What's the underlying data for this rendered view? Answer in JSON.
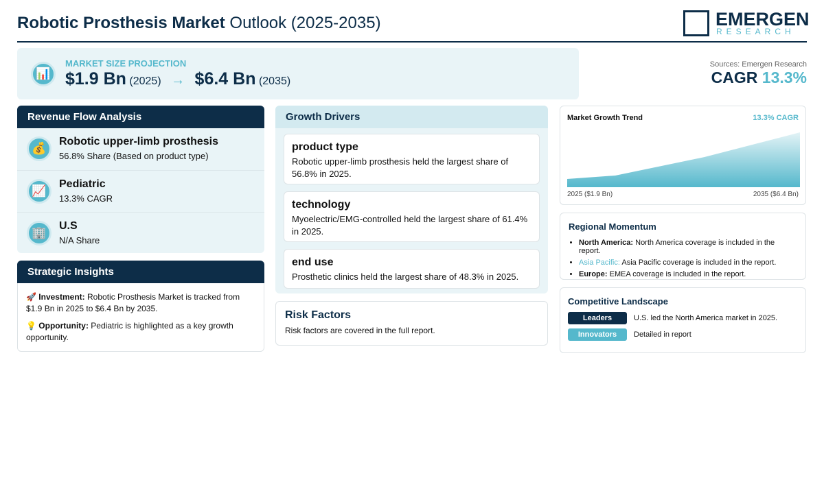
{
  "header": {
    "title_bold": "Robotic Prosthesis Market",
    "title_rest": "Outlook (2025-2035)",
    "logo_main": "EMERGEN",
    "logo_sub": "RESEARCH"
  },
  "projection": {
    "icon": "📊",
    "label": "MARKET SIZE PROJECTION",
    "start_value": "$1.9 Bn",
    "start_year": "(2025)",
    "arrow": "→",
    "end_value": "$6.4 Bn",
    "end_year": "(2035)"
  },
  "sources": "Sources: Emergen Research",
  "cagr": {
    "label": "CAGR",
    "value": "13.3%"
  },
  "revenue_flow": {
    "title": "Revenue Flow Analysis",
    "items": [
      {
        "icon": "💰",
        "name": "Robotic upper-limb prosthesis",
        "detail": "56.8% Share (Based on product type)"
      },
      {
        "icon": "📈",
        "name": "Pediatric",
        "detail": "13.3% CAGR"
      },
      {
        "icon": "🏢",
        "name": "U.S",
        "detail": "N/A Share"
      }
    ]
  },
  "strategic_insights": {
    "title": "Strategic Insights",
    "items": [
      {
        "icon": "🚀",
        "label": "Investment:",
        "text": "Robotic Prosthesis Market is tracked from $1.9 Bn in 2025 to $6.4 Bn by 2035."
      },
      {
        "icon": "💡",
        "label": "Opportunity:",
        "text": "Pediatric is highlighted as a key growth opportunity."
      }
    ]
  },
  "growth_drivers": {
    "title": "Growth Drivers",
    "cards": [
      {
        "title": "product type",
        "text": "Robotic upper-limb prosthesis held the largest share of 56.8% in 2025."
      },
      {
        "title": "technology",
        "text": "Myoelectric/EMG-controlled held the largest share of 61.4% in 2025."
      },
      {
        "title": "end use",
        "text": "Prosthetic clinics held the largest share of 48.3% in 2025."
      }
    ]
  },
  "risk_factors": {
    "title": "Risk Factors",
    "text": "Risk factors are covered in the full report."
  },
  "trend": {
    "title": "Market Growth Trend",
    "cagr": "13.3% CAGR",
    "start_label": "2025 ($1.9 Bn)",
    "end_label": "2035 ($6.4 Bn)"
  },
  "regional": {
    "title": "Regional Momentum",
    "items": [
      {
        "region": "North America:",
        "text": "North America coverage is included in the report."
      },
      {
        "region": "Asia Pacific:",
        "text": "Asia Pacific coverage is included in the report."
      },
      {
        "region": "Europe:",
        "text": "EMEA coverage is included in the report."
      }
    ]
  },
  "competitive": {
    "title": "Competitive Landscape",
    "items": [
      {
        "badge": "Leaders",
        "text": "U.S. led the North America market in 2025."
      },
      {
        "badge": "Innovators",
        "text": "Detailed in report"
      }
    ]
  }
}
